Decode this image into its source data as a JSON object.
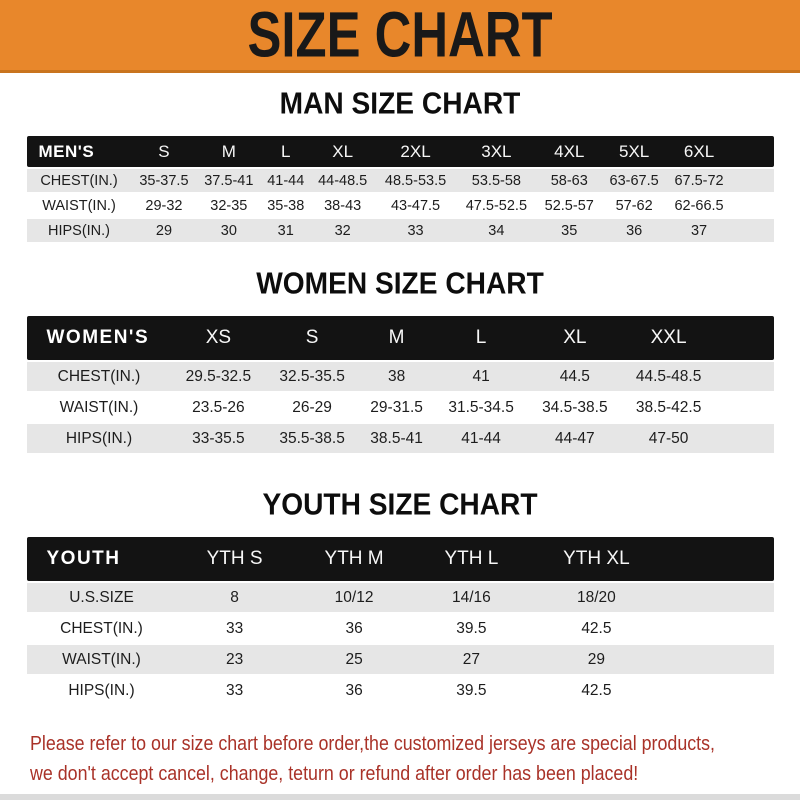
{
  "banner": {
    "title": "SIZE CHART",
    "bg_color": "#E8872B",
    "text_color": "#191919"
  },
  "sections": [
    {
      "heading": "MAN SIZE CHART",
      "header_label": "MEN'S",
      "columns": [
        "S",
        "M",
        "L",
        "XL",
        "2XL",
        "3XL",
        "4XL",
        "5XL",
        "6XL"
      ],
      "rows": [
        {
          "label": "CHEST(IN.)",
          "values": [
            "35-37.5",
            "37.5-41",
            "41-44",
            "44-48.5",
            "48.5-53.5",
            "53.5-58",
            "58-63",
            "63-67.5",
            "67.5-72"
          ]
        },
        {
          "label": "WAIST(IN.)",
          "values": [
            "29-32",
            "32-35",
            "35-38",
            "38-43",
            "43-47.5",
            "47.5-52.5",
            "52.5-57",
            "57-62",
            "62-66.5"
          ]
        },
        {
          "label": "HIPS(IN.)",
          "values": [
            "29",
            "30",
            "31",
            "32",
            "33",
            "34",
            "35",
            "36",
            "37"
          ]
        }
      ]
    },
    {
      "heading": "WOMEN SIZE CHART",
      "header_label": "WOMEN'S",
      "columns": [
        "XS",
        "S",
        "M",
        "L",
        "XL",
        "XXL"
      ],
      "rows": [
        {
          "label": "CHEST(IN.)",
          "values": [
            "29.5-32.5",
            "32.5-35.5",
            "38",
            "41",
            "44.5",
            "44.5-48.5"
          ]
        },
        {
          "label": "WAIST(IN.)",
          "values": [
            "23.5-26",
            "26-29",
            "29-31.5",
            "31.5-34.5",
            "34.5-38.5",
            "38.5-42.5"
          ]
        },
        {
          "label": "HIPS(IN.)",
          "values": [
            "33-35.5",
            "35.5-38.5",
            "38.5-41",
            "41-44",
            "44-47",
            "47-50"
          ]
        }
      ]
    },
    {
      "heading": "YOUTH SIZE CHART",
      "header_label": "YOUTH",
      "columns": [
        "YTH S",
        "YTH M",
        "YTH L",
        "YTH XL"
      ],
      "rows": [
        {
          "label": "U.S.SIZE",
          "values": [
            "8",
            "10/12",
            "14/16",
            "18/20"
          ]
        },
        {
          "label": "CHEST(IN.)",
          "values": [
            "33",
            "36",
            "39.5",
            "42.5"
          ]
        },
        {
          "label": "WAIST(IN.)",
          "values": [
            "23",
            "25",
            "27",
            "29"
          ]
        },
        {
          "label": "HIPS(IN.)",
          "values": [
            "33",
            "36",
            "39.5",
            "42.5"
          ]
        }
      ]
    }
  ],
  "table_style": {
    "header_bg": "#131313",
    "header_text": "#FFFFFF",
    "alt_row_bg": "#E6E6E6"
  },
  "disclaimer": {
    "line1": "Please refer to our size chart before order,the customized jerseys are special products,",
    "line2": "we don't accept cancel, change, teturn or refund after order has been placed!",
    "text_color": "#A93228"
  }
}
